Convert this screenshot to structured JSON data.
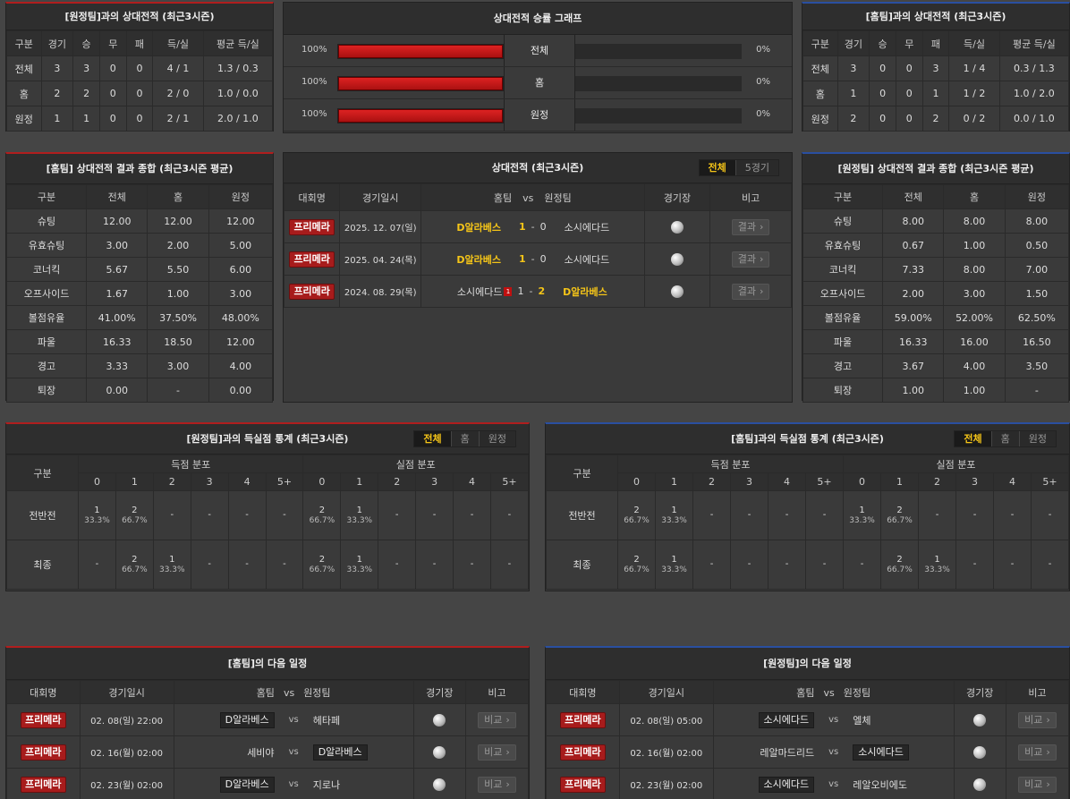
{
  "h2h_away": {
    "title": "[원정팀]과의 상대전적 (최근3시즌)",
    "headers": [
      "구분",
      "경기",
      "승",
      "무",
      "패",
      "득/실",
      "평균 득/실"
    ],
    "rows": [
      [
        "전체",
        "3",
        "3",
        "0",
        "0",
        "4 / 1",
        "1.3 / 0.3"
      ],
      [
        "홈",
        "2",
        "2",
        "0",
        "0",
        "2 / 0",
        "1.0 / 0.0"
      ],
      [
        "원정",
        "1",
        "1",
        "0",
        "0",
        "2 / 1",
        "2.0 / 1.0"
      ]
    ]
  },
  "h2h_home": {
    "title": "[홈팀]과의 상대전적 (최근3시즌)",
    "headers": [
      "구분",
      "경기",
      "승",
      "무",
      "패",
      "득/실",
      "평균 득/실"
    ],
    "rows": [
      [
        "전체",
        "3",
        "0",
        "0",
        "3",
        "1 / 4",
        "0.3 / 1.3"
      ],
      [
        "홈",
        "1",
        "0",
        "0",
        "1",
        "1 / 2",
        "1.0 / 2.0"
      ],
      [
        "원정",
        "2",
        "0",
        "0",
        "2",
        "0 / 2",
        "0.0 / 1.0"
      ]
    ]
  },
  "graph": {
    "title": "상대전적 승률 그래프",
    "rows": [
      {
        "label": "전체",
        "left": "100%",
        "right": "0%",
        "left_frac": 1.0,
        "right_frac": 0.0
      },
      {
        "label": "홈",
        "left": "100%",
        "right": "0%",
        "left_frac": 1.0,
        "right_frac": 0.0
      },
      {
        "label": "원정",
        "left": "100%",
        "right": "0%",
        "left_frac": 1.0,
        "right_frac": 0.0
      }
    ]
  },
  "summary_home": {
    "title": "[홈팀] 상대전적 결과 종합 (최근3시즌 평균)",
    "headers": [
      "구분",
      "전체",
      "홈",
      "원정"
    ],
    "rows": [
      [
        "슈팅",
        "12.00",
        "12.00",
        "12.00"
      ],
      [
        "유효슈팅",
        "3.00",
        "2.00",
        "5.00"
      ],
      [
        "코너킥",
        "5.67",
        "5.50",
        "6.00"
      ],
      [
        "오프사이드",
        "1.67",
        "1.00",
        "3.00"
      ],
      [
        "볼점유율",
        "41.00%",
        "37.50%",
        "48.00%"
      ],
      [
        "파울",
        "16.33",
        "18.50",
        "12.00"
      ],
      [
        "경고",
        "3.33",
        "3.00",
        "4.00"
      ],
      [
        "퇴장",
        "0.00",
        "-",
        "0.00"
      ]
    ]
  },
  "summary_away": {
    "title": "[원정팀] 상대전적 결과 종합 (최근3시즌 평균)",
    "headers": [
      "구분",
      "전체",
      "홈",
      "원정"
    ],
    "rows": [
      [
        "슈팅",
        "8.00",
        "8.00",
        "8.00"
      ],
      [
        "유효슈팅",
        "0.67",
        "1.00",
        "0.50"
      ],
      [
        "코너킥",
        "7.33",
        "8.00",
        "7.00"
      ],
      [
        "오프사이드",
        "2.00",
        "3.00",
        "1.50"
      ],
      [
        "볼점유율",
        "59.00%",
        "52.00%",
        "62.50%"
      ],
      [
        "파울",
        "16.33",
        "16.00",
        "16.50"
      ],
      [
        "경고",
        "3.67",
        "4.00",
        "3.50"
      ],
      [
        "퇴장",
        "1.00",
        "1.00",
        "-"
      ]
    ]
  },
  "matches": {
    "title": "상대전적 (최근3시즌)",
    "tabs": [
      "전체",
      "5경기"
    ],
    "headers": {
      "league": "대회명",
      "date": "경기일시",
      "home": "홈팀",
      "vs": "vs",
      "away": "원정팀",
      "venue": "경기장",
      "note": "비고"
    },
    "rows": [
      {
        "league": "프리메라",
        "date": "2025. 12. 07(일)",
        "home": "D알라베스",
        "hs": "1",
        "as": "0",
        "away": "소시에다드",
        "btn": "결과",
        "winner": "home",
        "card": ""
      },
      {
        "league": "프리메라",
        "date": "2025. 04. 24(목)",
        "home": "D알라베스",
        "hs": "1",
        "as": "0",
        "away": "소시에다드",
        "btn": "결과",
        "winner": "home",
        "card": ""
      },
      {
        "league": "프리메라",
        "date": "2024. 08. 29(목)",
        "home": "소시에다드",
        "hs": "1",
        "as": "2",
        "away": "D알라베스",
        "btn": "결과",
        "winner": "away",
        "card": "1"
      }
    ]
  },
  "goals_away": {
    "title": "[원정팀]과의 득실점 통계 (최근3시즌)",
    "tabs": [
      "전체",
      "홈",
      "원정"
    ],
    "col_label": "구분",
    "scored": "득점 분포",
    "conceded": "실점 분포",
    "bins": [
      "0",
      "1",
      "2",
      "3",
      "4",
      "5+"
    ],
    "rows": [
      {
        "label": "전반전",
        "scored": [
          [
            "1",
            "33.3%"
          ],
          [
            "2",
            "66.7%"
          ],
          [
            "-",
            ""
          ],
          [
            "-",
            ""
          ],
          [
            "-",
            ""
          ],
          [
            "-",
            ""
          ]
        ],
        "conceded": [
          [
            "2",
            "66.7%"
          ],
          [
            "1",
            "33.3%"
          ],
          [
            "-",
            ""
          ],
          [
            "-",
            ""
          ],
          [
            "-",
            ""
          ],
          [
            "-",
            ""
          ]
        ]
      },
      {
        "label": "최종",
        "scored": [
          [
            "-",
            ""
          ],
          [
            "2",
            "66.7%"
          ],
          [
            "1",
            "33.3%"
          ],
          [
            "-",
            ""
          ],
          [
            "-",
            ""
          ],
          [
            "-",
            ""
          ]
        ],
        "conceded": [
          [
            "2",
            "66.7%"
          ],
          [
            "1",
            "33.3%"
          ],
          [
            "-",
            ""
          ],
          [
            "-",
            ""
          ],
          [
            "-",
            ""
          ],
          [
            "-",
            ""
          ]
        ]
      }
    ]
  },
  "goals_home": {
    "title": "[홈팀]과의 득실점 통계 (최근3시즌)",
    "tabs": [
      "전체",
      "홈",
      "원정"
    ],
    "col_label": "구분",
    "scored": "득점 분포",
    "conceded": "실점 분포",
    "bins": [
      "0",
      "1",
      "2",
      "3",
      "4",
      "5+"
    ],
    "rows": [
      {
        "label": "전반전",
        "scored": [
          [
            "2",
            "66.7%"
          ],
          [
            "1",
            "33.3%"
          ],
          [
            "-",
            ""
          ],
          [
            "-",
            ""
          ],
          [
            "-",
            ""
          ],
          [
            "-",
            ""
          ]
        ],
        "conceded": [
          [
            "1",
            "33.3%"
          ],
          [
            "2",
            "66.7%"
          ],
          [
            "-",
            ""
          ],
          [
            "-",
            ""
          ],
          [
            "-",
            ""
          ],
          [
            "-",
            ""
          ]
        ]
      },
      {
        "label": "최종",
        "scored": [
          [
            "2",
            "66.7%"
          ],
          [
            "1",
            "33.3%"
          ],
          [
            "-",
            ""
          ],
          [
            "-",
            ""
          ],
          [
            "-",
            ""
          ],
          [
            "-",
            ""
          ]
        ],
        "conceded": [
          [
            "-",
            ""
          ],
          [
            "2",
            "66.7%"
          ],
          [
            "1",
            "33.3%"
          ],
          [
            "-",
            ""
          ],
          [
            "-",
            ""
          ],
          [
            "-",
            ""
          ]
        ]
      }
    ]
  },
  "next_home": {
    "title": "[홈팀]의 다음 일정",
    "headers": {
      "league": "대회명",
      "date": "경기일시",
      "home": "홈팀",
      "vs": "vs",
      "away": "원정팀",
      "venue": "경기장",
      "note": "비고"
    },
    "rows": [
      {
        "league": "프리메라",
        "date": "02. 08(일) 22:00",
        "home": "D알라베스",
        "away": "헤타페",
        "vs": "vs",
        "btn": "비교",
        "hl": "home"
      },
      {
        "league": "프리메라",
        "date": "02. 16(월) 02:00",
        "home": "세비야",
        "away": "D알라베스",
        "vs": "vs",
        "btn": "비교",
        "hl": "away"
      },
      {
        "league": "프리메라",
        "date": "02. 23(월) 02:00",
        "home": "D알라베스",
        "away": "지로나",
        "vs": "vs",
        "btn": "비교",
        "hl": "home"
      }
    ]
  },
  "next_away": {
    "title": "[원정팀]의 다음 일정",
    "headers": {
      "league": "대회명",
      "date": "경기일시",
      "home": "홈팀",
      "vs": "vs",
      "away": "원정팀",
      "venue": "경기장",
      "note": "비고"
    },
    "rows": [
      {
        "league": "프리메라",
        "date": "02. 08(일) 05:00",
        "home": "소시에다드",
        "away": "엘체",
        "vs": "vs",
        "btn": "비교",
        "hl": "home"
      },
      {
        "league": "프리메라",
        "date": "02. 16(월) 02:00",
        "home": "레알마드리드",
        "away": "소시에다드",
        "vs": "vs",
        "btn": "비교",
        "hl": "away"
      },
      {
        "league": "프리메라",
        "date": "02. 23(월) 02:00",
        "home": "소시에다드",
        "away": "레알오비에도",
        "vs": "vs",
        "btn": "비교",
        "hl": "home"
      }
    ]
  }
}
